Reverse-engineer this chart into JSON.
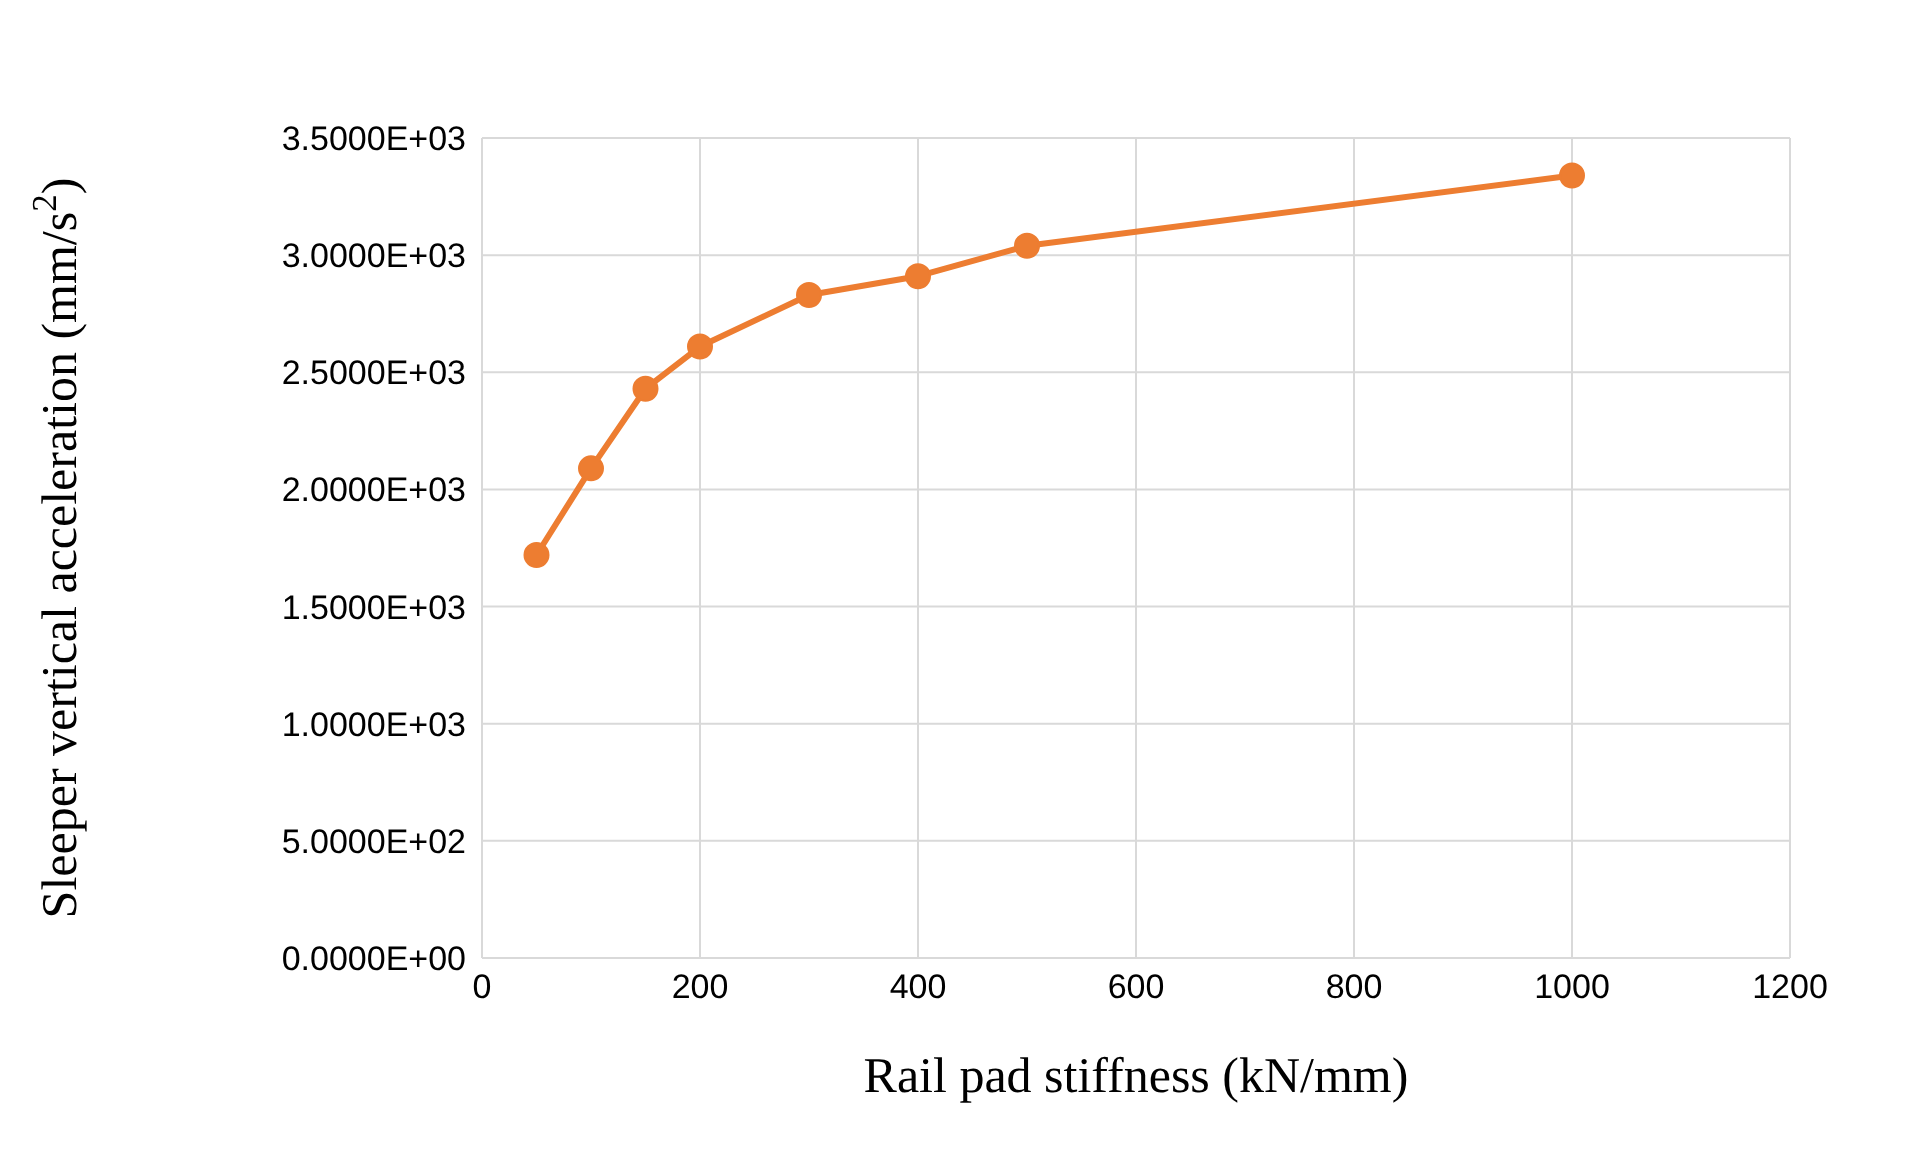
{
  "chart_data": {
    "type": "line",
    "xlabel": "Rail pad stiffness (kN/mm)",
    "ylabel": "Sleeper vertical acceleration (mm/s$^{2}$)",
    "x": [
      50,
      100,
      150,
      200,
      300,
      400,
      500,
      1000
    ],
    "series": [
      {
        "color": "#ed7d31",
        "values": [
          1720,
          2090,
          2430,
          2610,
          2830,
          2910,
          3040,
          3340
        ]
      }
    ],
    "xlim": [
      0,
      1200
    ],
    "xticks": [
      0,
      200,
      400,
      600,
      800,
      1000,
      1200
    ],
    "ylim": [
      0,
      3500
    ],
    "yticks": [
      {
        "value": 0,
        "label": "0.0000E+00"
      },
      {
        "value": 500,
        "label": "5.0000E+02"
      },
      {
        "value": 1000,
        "label": "1.0000E+03"
      },
      {
        "value": 1500,
        "label": "1.5000E+03"
      },
      {
        "value": 2000,
        "label": "2.0000E+03"
      },
      {
        "value": 2500,
        "label": "2.5000E+03"
      },
      {
        "value": 3000,
        "label": "3.0000E+03"
      },
      {
        "value": 3500,
        "label": "3.5000E+03"
      }
    ],
    "grid": true,
    "marker": "circle",
    "line_style": "solid",
    "legend": false
  }
}
